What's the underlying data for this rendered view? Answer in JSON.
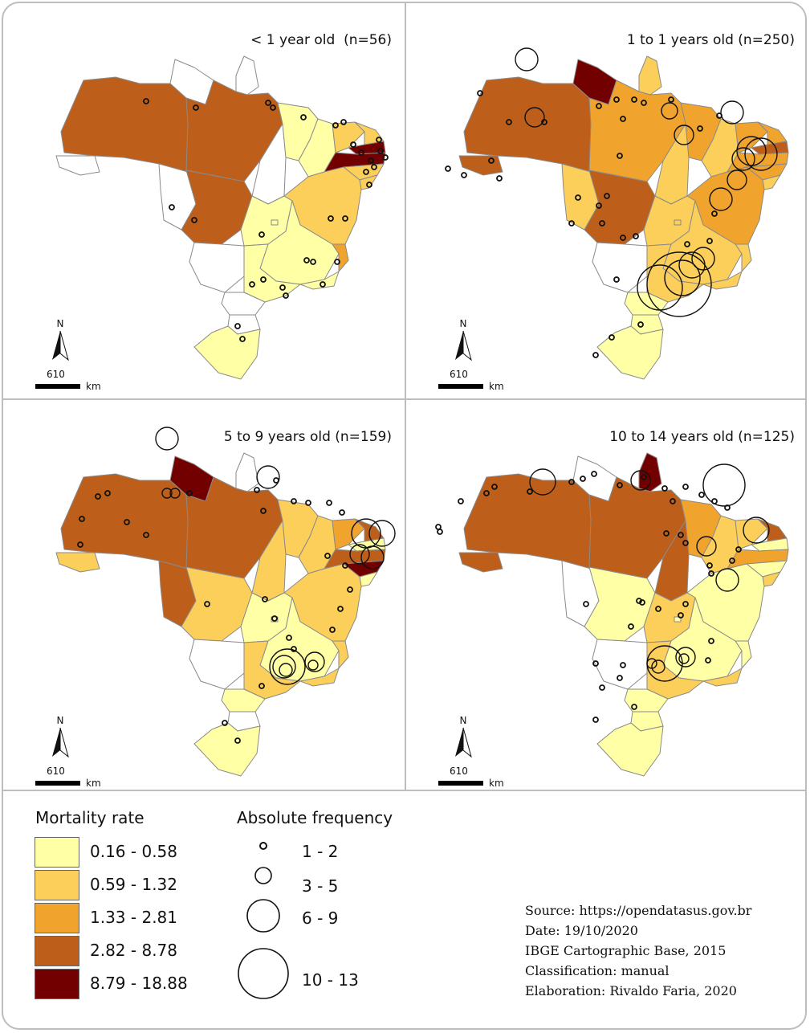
{
  "panels": [
    {
      "title": "< 1 year old  (n=56)"
    },
    {
      "title": "1 to 1 years old (n=250)"
    },
    {
      "title": "5 to 9 years old (n=159)"
    },
    {
      "title": "10 to 14 years old (n=125)"
    }
  ],
  "map_elements": {
    "north_label": "N",
    "scale_value": "610",
    "scale_unit": "km"
  },
  "legend": {
    "mortality_title": "Mortality rate",
    "classes": [
      {
        "label": "0.16 - 0.58",
        "color": "#ffffa6"
      },
      {
        "label": "0.59 - 1.32",
        "color": "#fbcf5a"
      },
      {
        "label": "1.33 - 2.81",
        "color": "#f0a42e"
      },
      {
        "label": "2.82 - 8.78",
        "color": "#bd5f1b"
      },
      {
        "label": "8.79 - 18.88",
        "color": "#730000"
      }
    ],
    "frequency_title": "Absolute frequency",
    "frequency_classes": [
      "1 - 2",
      "3 - 5",
      "6 - 9",
      "10 - 13"
    ]
  },
  "source_notes": [
    "Source: https://opendatasus.gov.br",
    "Date: 19/10/2020",
    "IBGE Cartographic Base, 2015",
    "Classification: manual",
    "Elaboration: Rivaldo Faria, 2020"
  ],
  "colors": {
    "no_data": "#ffffff",
    "border": "#8a8a8a",
    "frame": "#bdbdbd"
  }
}
